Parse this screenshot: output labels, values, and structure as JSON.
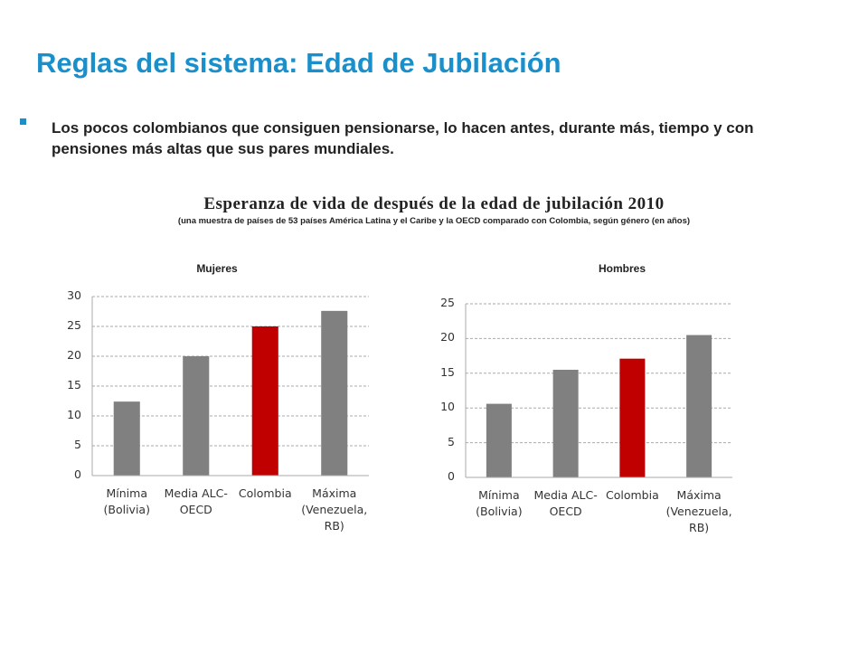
{
  "title": "Reglas del sistema: Edad de Jubilación",
  "bullet": "Los pocos colombianos que consiguen pensionarse, lo hacen antes, durante más, tiempo y con pensiones más altas que sus pares mundiales.",
  "figure_title": "Esperanza de vida de después de la edad de jubilación 2010",
  "figure_subtitle": "(una muestra de países de 53 países América Latina y el Caribe y la OECD comparado con Colombia, según género (en años)",
  "chart_data": [
    {
      "type": "bar",
      "title": "Mujeres",
      "categories": [
        "Mínima (Bolivia)",
        "Media ALC-OECD",
        "Colombia",
        "Máxima (Venezuela, RB)"
      ],
      "values": [
        12.4,
        20,
        25,
        27.6
      ],
      "colors": [
        "#808080",
        "#808080",
        "#c00000",
        "#808080"
      ],
      "ylim": [
        0,
        30
      ],
      "yticks": [
        0,
        5,
        10,
        15,
        20,
        25,
        30
      ],
      "grid": true
    },
    {
      "type": "bar",
      "title": "Hombres",
      "categories": [
        "Mínima (Bolivia)",
        "Media ALC-OECD",
        "Colombia",
        "Máxima (Venezuela, RB)"
      ],
      "values": [
        10.6,
        15.5,
        17.1,
        20.5
      ],
      "colors": [
        "#808080",
        "#808080",
        "#c00000",
        "#808080"
      ],
      "ylim": [
        0,
        25
      ],
      "yticks": [
        0,
        5,
        10,
        15,
        20,
        25
      ],
      "grid": true
    }
  ]
}
